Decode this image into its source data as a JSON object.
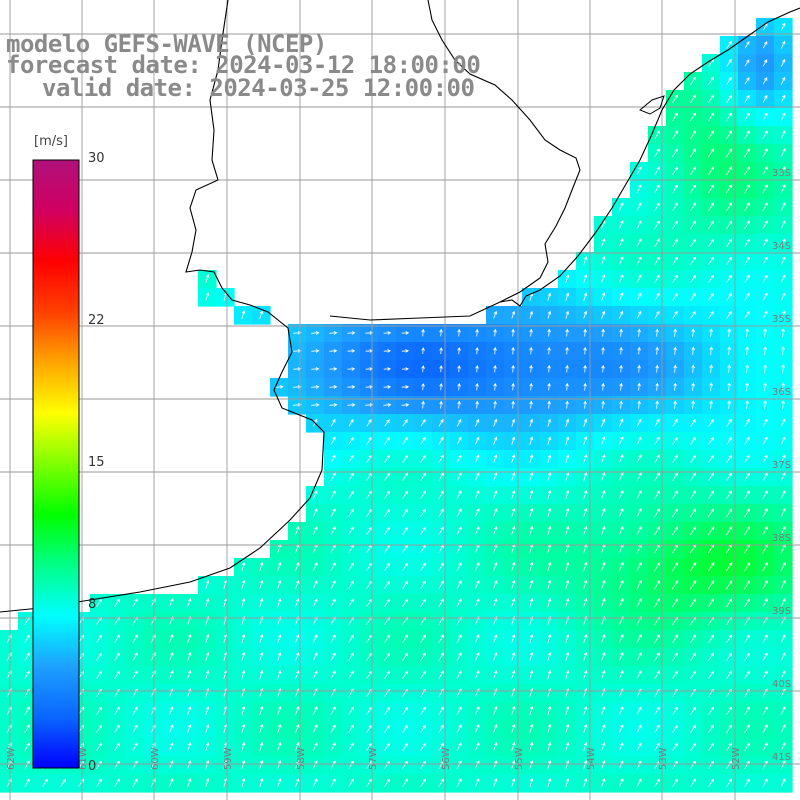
{
  "title": {
    "model": "modelo GEFS-WAVE (NCEP)",
    "forecast": "forecast date: 2024-03-12 18:00:00",
    "valid": "valid date: 2024-03-25 12:00:00"
  },
  "colorbar": {
    "unit": "[m/s]",
    "min": 0,
    "max": 30,
    "ticks": [
      {
        "value": 30,
        "label": "30"
      },
      {
        "value": 22,
        "label": "22"
      },
      {
        "value": 15,
        "label": "15"
      },
      {
        "value": 8,
        "label": "8"
      },
      {
        "value": 0,
        "label": "0"
      }
    ],
    "colors": [
      "#0000ff",
      "#0a66ff",
      "#1ea0ff",
      "#00ffff",
      "#00ff88",
      "#00ff00",
      "#7fff00",
      "#ffff00",
      "#ffa500",
      "#ff4000",
      "#ff0000",
      "#d00060",
      "#b0107a"
    ]
  },
  "map": {
    "grid_lat_labels": [
      "33S",
      "34S",
      "35S",
      "36S",
      "37S",
      "38S",
      "39S",
      "40S",
      "41S"
    ],
    "grid_lon_labels": [
      "62W",
      "61W",
      "60W",
      "59W",
      "58W",
      "57W",
      "56W",
      "55W",
      "54W",
      "53W",
      "52W"
    ],
    "land_color": "#ffffff",
    "coast_color": "#000000",
    "grid_color": "#9a9a9a"
  }
}
